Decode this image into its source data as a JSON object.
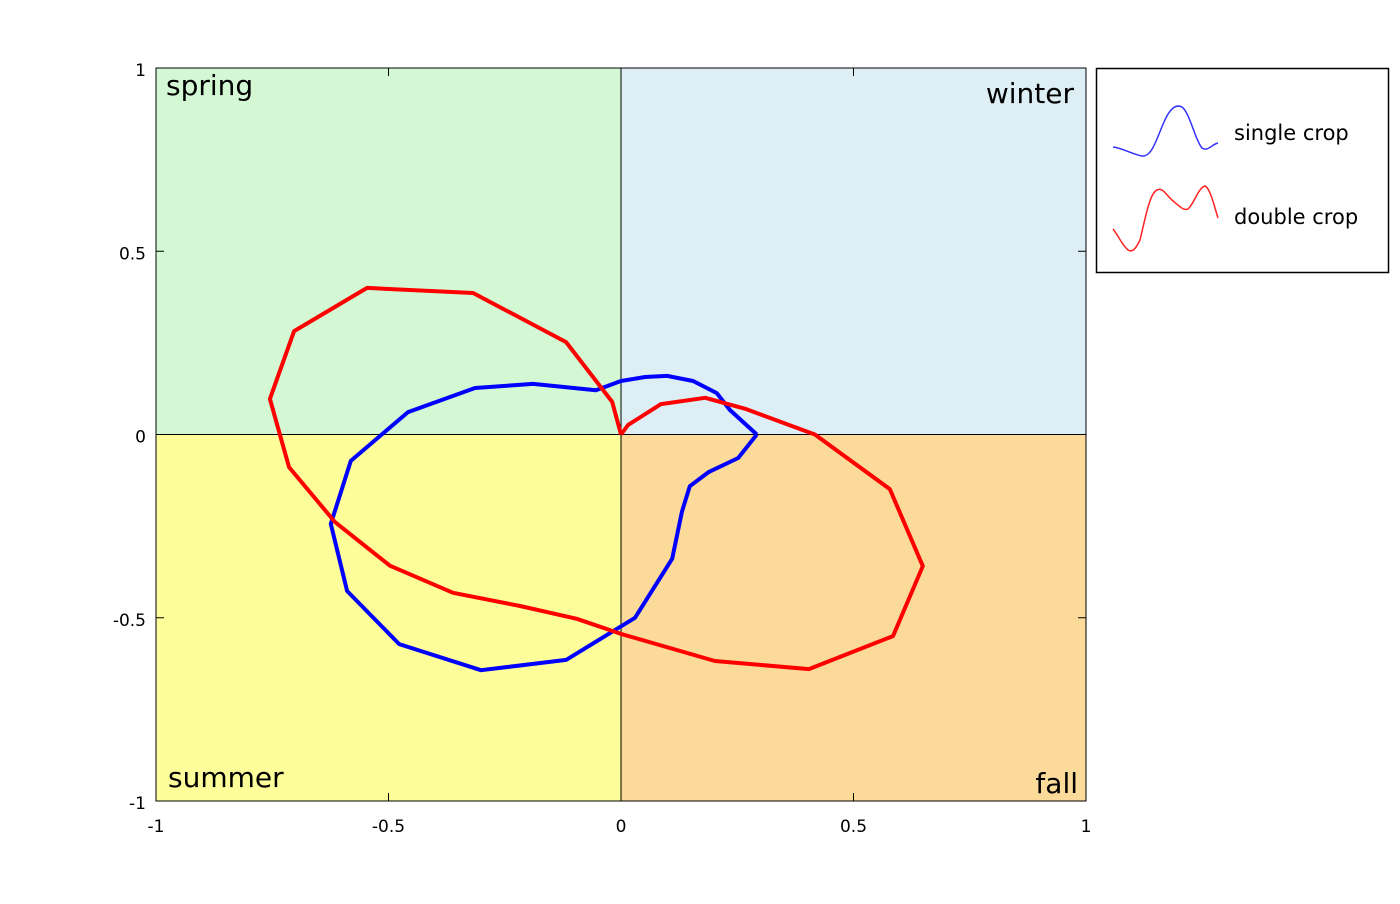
{
  "chart_data": {
    "type": "line",
    "title": "",
    "xlabel": "",
    "ylabel": "",
    "xlim": [
      -1,
      1
    ],
    "ylim": [
      -1,
      1
    ],
    "grid": false,
    "legend_position": "outside-top-right",
    "x_ticks": [
      "-1",
      "-0.5",
      "0",
      "0.5",
      "1"
    ],
    "y_ticks": [
      "-1",
      "-0.5",
      "0",
      "0.5",
      "1"
    ],
    "quadrants": [
      {
        "label": "spring",
        "x": [
          -1,
          0
        ],
        "y": [
          0,
          1
        ],
        "color": "#d3f8d3"
      },
      {
        "label": "winter",
        "x": [
          0,
          1
        ],
        "y": [
          0,
          1
        ],
        "color": "#ddeef5"
      },
      {
        "label": "summer",
        "x": [
          -1,
          0
        ],
        "y": [
          -1,
          0
        ],
        "color": "#fdfd9a"
      },
      {
        "label": "fall",
        "x": [
          0,
          1
        ],
        "y": [
          -1,
          0
        ],
        "color": "#fcda9a"
      }
    ],
    "series": [
      {
        "name": "single crop",
        "color": "#0000ff",
        "points": [
          [
            0.292,
            0
          ],
          [
            0.252,
            -0.064
          ],
          [
            0.189,
            -0.102
          ],
          [
            0.148,
            -0.141
          ],
          [
            0.131,
            -0.211
          ],
          [
            0.11,
            -0.339
          ],
          [
            0.03,
            -0.5
          ],
          [
            -0.118,
            -0.615
          ],
          [
            -0.301,
            -0.643
          ],
          [
            -0.477,
            -0.572
          ],
          [
            -0.589,
            -0.427
          ],
          [
            -0.624,
            -0.244
          ],
          [
            -0.581,
            -0.072
          ],
          [
            -0.458,
            0.061
          ],
          [
            -0.314,
            0.127
          ],
          [
            -0.189,
            0.138
          ],
          [
            -0.054,
            0.121
          ],
          [
            0,
            0.146
          ],
          [
            0.052,
            0.157
          ],
          [
            0.099,
            0.16
          ],
          [
            0.155,
            0.146
          ],
          [
            0.206,
            0.113
          ],
          [
            0.234,
            0.067
          ],
          [
            0.292,
            0
          ]
        ]
      },
      {
        "name": "double crop",
        "color": "#ff0000",
        "points": [
          [
            0,
            0
          ],
          [
            0.015,
            0.026
          ],
          [
            0.086,
            0.083
          ],
          [
            0.181,
            0.1
          ],
          [
            0.267,
            0.07
          ],
          [
            0.417,
            0
          ],
          [
            0.578,
            -0.149
          ],
          [
            0.649,
            -0.359
          ],
          [
            0.585,
            -0.55
          ],
          [
            0.404,
            -0.64
          ],
          [
            0.202,
            -0.618
          ],
          [
            0,
            -0.544
          ],
          [
            -0.095,
            -0.503
          ],
          [
            -0.217,
            -0.468
          ],
          [
            -0.361,
            -0.432
          ],
          [
            -0.497,
            -0.358
          ],
          [
            -0.615,
            -0.239
          ],
          [
            -0.714,
            -0.089
          ],
          [
            -0.755,
            0.097
          ],
          [
            -0.703,
            0.282
          ],
          [
            -0.546,
            0.4
          ],
          [
            -0.318,
            0.386
          ],
          [
            -0.118,
            0.252
          ],
          [
            -0.019,
            0.089
          ],
          [
            0,
            0
          ]
        ]
      }
    ]
  }
}
